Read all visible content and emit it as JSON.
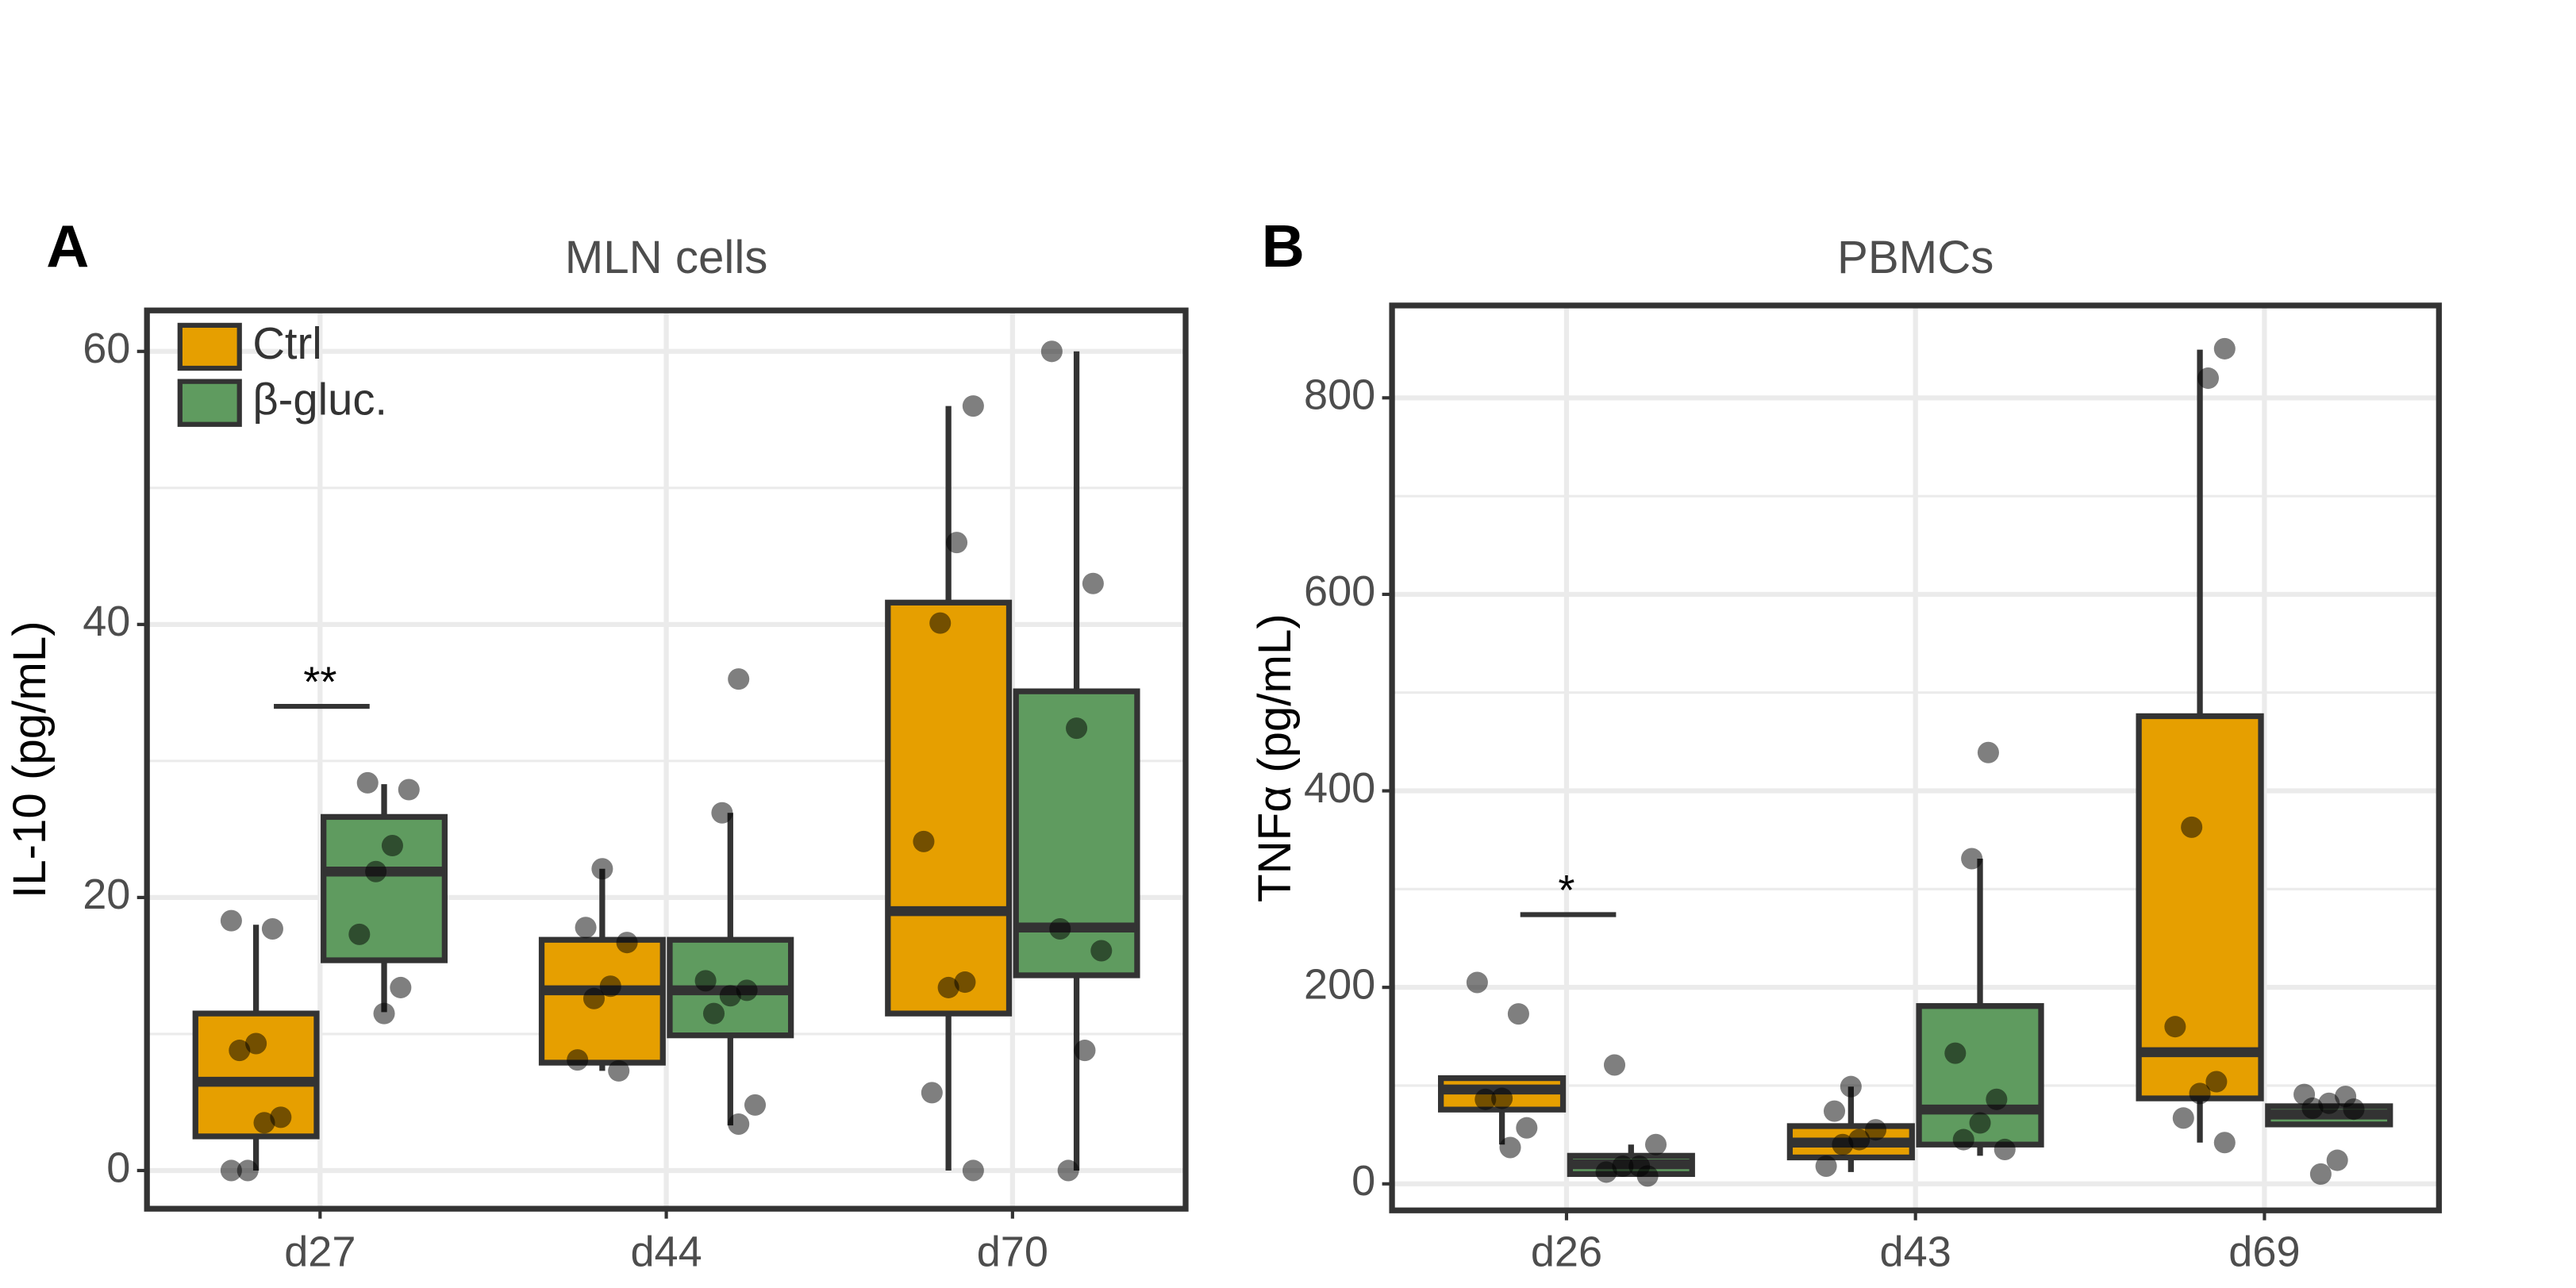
{
  "chart_data": [
    {
      "type": "box",
      "panel": "A",
      "title": "MLN cells",
      "y_label": "IL-10 (pg/mL)",
      "categories": [
        "d27",
        "d44",
        "d70"
      ],
      "ylim": [
        -2.8,
        63
      ],
      "yticks": [
        0,
        20,
        40,
        60
      ],
      "minor_yticks": [
        10,
        30,
        50
      ],
      "grid": true,
      "legend": "top-left",
      "series": [
        {
          "name": "Ctrl",
          "color": "#e69f00",
          "boxes": [
            {
              "low": 0,
              "q1": 2.5,
              "median": 6.5,
              "q3": 11.5,
              "high": 18,
              "points": [
                18.3,
                17.7,
                9.3,
                8.8,
                3.9,
                3.5,
                0,
                0
              ]
            },
            {
              "low": 7.3,
              "q1": 7.9,
              "median": 13.2,
              "q3": 16.9,
              "high": 22.1,
              "points": [
                22.1,
                17.8,
                16.7,
                13.5,
                12.6,
                8.1,
                7.3
              ]
            },
            {
              "low": 0,
              "q1": 11.5,
              "median": 19,
              "q3": 41.6,
              "high": 56,
              "points": [
                56,
                46,
                40.1,
                24.1,
                13.8,
                13.4,
                5.7,
                0
              ]
            }
          ]
        },
        {
          "name": "β-gluc.",
          "color": "#5f9b5f",
          "boxes": [
            {
              "low": 11.6,
              "q1": 15.4,
              "median": 21.9,
              "q3": 25.9,
              "high": 28.3,
              "points": [
                28.4,
                27.9,
                23.8,
                21.9,
                17.3,
                13.4,
                11.5
              ]
            },
            {
              "low": 3.3,
              "q1": 9.9,
              "median": 13.2,
              "q3": 16.9,
              "high": 26.2,
              "points": [
                36,
                26.2,
                13.9,
                13.2,
                12.8,
                11.5,
                4.8,
                3.4
              ]
            },
            {
              "low": 0,
              "q1": 14.3,
              "median": 17.8,
              "q3": 35.1,
              "high": 60,
              "points": [
                60,
                43,
                32.4,
                17.7,
                16.1,
                8.8,
                0
              ]
            }
          ]
        }
      ],
      "annotations": [
        {
          "text": "**",
          "category": "d27",
          "y": 34
        }
      ]
    },
    {
      "type": "box",
      "panel": "B",
      "title": "PBMCs",
      "y_label": "TNFα (pg/mL)",
      "categories": [
        "d26",
        "d43",
        "d69"
      ],
      "ylim": [
        -27,
        894
      ],
      "yticks": [
        0,
        200,
        400,
        600,
        800
      ],
      "minor_yticks": [
        100,
        300,
        500,
        700
      ],
      "grid": true,
      "series": [
        {
          "color": "#e69f00",
          "boxes": [
            {
              "low": 40,
              "q1": 75.6,
              "median": 96,
              "q3": 107.6,
              "high": 107.6,
              "points": [
                205,
                173,
                87,
                86,
                57,
                37
              ]
            },
            {
              "low": 12,
              "q1": 26.9,
              "median": 42,
              "q3": 58.8,
              "high": 99,
              "points": [
                99,
                74,
                55,
                45,
                40,
                18
              ]
            },
            {
              "low": 42,
              "q1": 87,
              "median": 134,
              "q3": 476,
              "high": 849,
              "points": [
                850,
                820,
                363,
                160,
                104,
                92,
                67,
                42
              ]
            }
          ]
        },
        {
          "color": "#5f9b5f",
          "boxes": [
            {
              "low": 8,
              "q1": 10,
              "median": 20,
              "q3": 28.6,
              "high": 40,
              "points": [
                121,
                40,
                18,
                18,
                12,
                8
              ]
            },
            {
              "low": 28.6,
              "q1": 40,
              "median": 75.6,
              "q3": 181,
              "high": 331,
              "points": [
                439,
                331,
                133,
                86,
                62,
                45,
                35
              ]
            },
            {
              "low": 60.5,
              "q1": 60.5,
              "median": 70.6,
              "q3": 79,
              "high": 79,
              "points": [
                91,
                89,
                82,
                77,
                76,
                24,
                10
              ]
            }
          ]
        }
      ],
      "annotations": [
        {
          "text": "*",
          "category": "d26",
          "y": 274
        }
      ]
    }
  ]
}
